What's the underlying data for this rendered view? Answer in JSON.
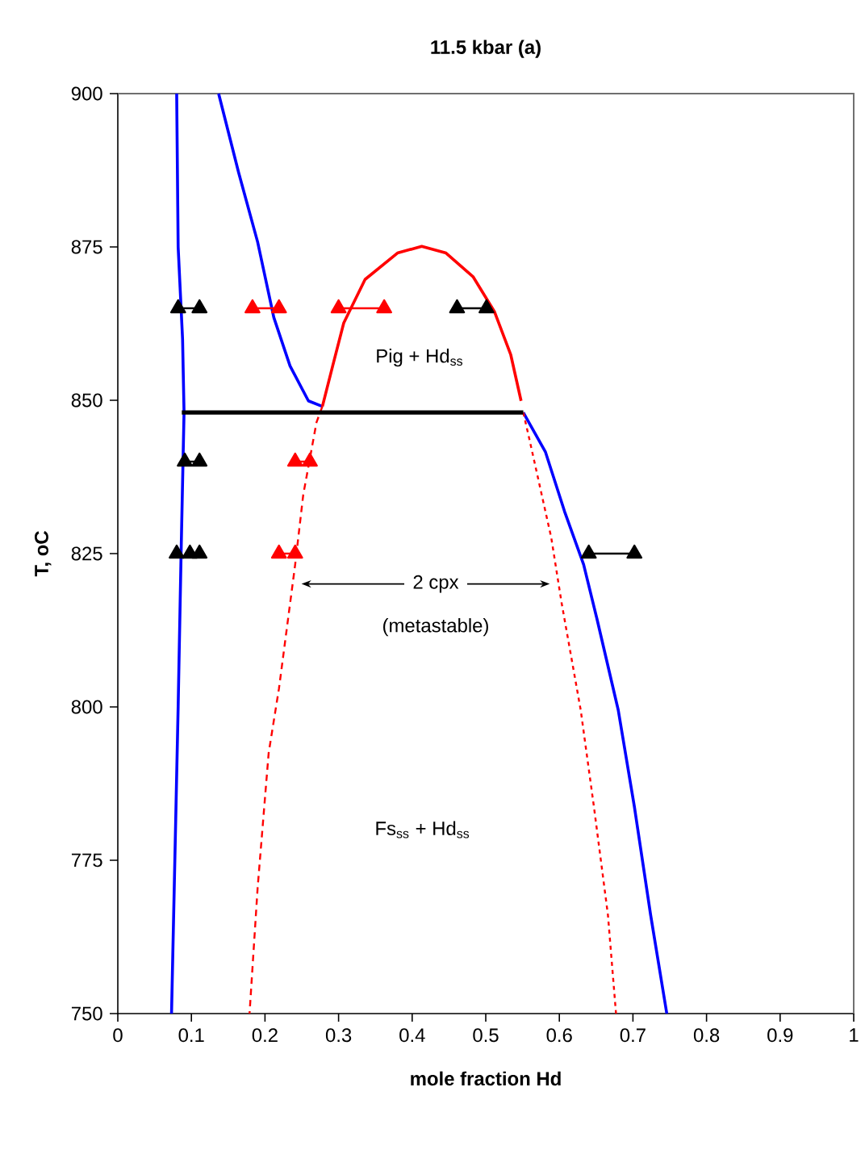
{
  "chart_data": {
    "type": "line",
    "title": "11.5 kbar (a)",
    "xlabel": "mole fraction Hd",
    "ylabel": "T, oC",
    "xlim": [
      0,
      1
    ],
    "ylim": [
      750,
      900
    ],
    "xticks": [
      0,
      0.1,
      0.2,
      0.3,
      0.4,
      0.5,
      0.6,
      0.7,
      0.8,
      0.9,
      1
    ],
    "yticks": [
      750,
      775,
      800,
      825,
      850,
      875,
      900
    ],
    "grid": false,
    "legend": false,
    "series": [
      {
        "color": "#0000ff",
        "marker": "none",
        "line_style": "solid",
        "x": [
          0.08,
          0.082,
          0.088,
          0.09,
          0.086,
          0.082,
          0.073
        ],
        "values": [
          900,
          875,
          860,
          848,
          825,
          800,
          750
        ]
      },
      {
        "color": "#0000ff",
        "marker": "none",
        "line_style": "solid",
        "x": [
          0.137,
          0.164,
          0.19,
          0.212,
          0.234,
          0.259,
          0.278
        ],
        "values": [
          900,
          887.2,
          875.8,
          863.5,
          855.6,
          849.9,
          849
        ]
      },
      {
        "color": "#ff0000",
        "marker": "none",
        "line_style": "solid",
        "x": [
          0.278,
          0.292,
          0.307,
          0.336,
          0.38,
          0.413,
          0.446,
          0.483,
          0.512,
          0.534,
          0.548
        ],
        "values": [
          849,
          855.6,
          862.6,
          869.7,
          874,
          875.1,
          874,
          870.1,
          864.4,
          857.4,
          849.9
        ]
      },
      {
        "color": "#0000ff",
        "marker": "none",
        "line_style": "solid",
        "x": [
          0.551,
          0.581,
          0.607,
          0.633,
          0.651,
          0.68,
          0.702,
          0.724,
          0.746
        ],
        "values": [
          848,
          841.6,
          831.9,
          823.2,
          814.4,
          799.5,
          783.7,
          766.1,
          750
        ]
      },
      {
        "color": "#ff0000",
        "marker": "none",
        "line_style": "dashed",
        "x": [
          0.278,
          0.27,
          0.252,
          0.241,
          0.219,
          0.205,
          0.19,
          0.179
        ],
        "values": [
          849,
          846.4,
          834.6,
          823.2,
          803,
          792.5,
          770.5,
          750
        ]
      },
      {
        "color": "#ff0000",
        "marker": "none",
        "line_style": "dotted",
        "x": [
          0.551,
          0.559,
          0.589,
          0.603,
          0.629,
          0.647,
          0.666,
          0.677
        ],
        "values": [
          848,
          843.8,
          827.6,
          817,
          799.5,
          783.7,
          766.1,
          750
        ]
      },
      {
        "color": "#000000",
        "marker": "none",
        "line_style": "solid",
        "x": [
          0.087,
          0.551
        ],
        "values": [
          848,
          848
        ]
      },
      {
        "color": "#000000",
        "marker": "triangle",
        "line_style": "solid",
        "x": [
          0.082,
          0.111
        ],
        "values": [
          865,
          865
        ]
      },
      {
        "color": "#ff0000",
        "marker": "triangle",
        "line_style": "solid",
        "x": [
          0.183,
          0.219
        ],
        "values": [
          865,
          865
        ]
      },
      {
        "color": "#ff0000",
        "marker": "triangle",
        "line_style": "solid",
        "x": [
          0.3,
          0.362
        ],
        "values": [
          865,
          865
        ]
      },
      {
        "color": "#000000",
        "marker": "triangle",
        "line_style": "solid",
        "x": [
          0.461,
          0.501
        ],
        "values": [
          865,
          865
        ]
      },
      {
        "color": "#000000",
        "marker": "triangle",
        "line_style": "solid",
        "x": [
          0.091,
          0.111
        ],
        "values": [
          840,
          840
        ]
      },
      {
        "color": "#ff0000",
        "marker": "triangle",
        "line_style": "solid",
        "x": [
          0.241,
          0.261
        ],
        "values": [
          840,
          840
        ]
      },
      {
        "type": "scatter",
        "color": "#000000",
        "marker": "triangle",
        "x": [
          0.08,
          0.098,
          0.111
        ],
        "values": [
          825,
          825,
          825
        ]
      },
      {
        "color": "#ff0000",
        "marker": "triangle",
        "line_style": "solid",
        "x": [
          0.219,
          0.241
        ],
        "values": [
          825,
          825
        ]
      },
      {
        "color": "#000000",
        "marker": "triangle",
        "line_style": "solid",
        "x": [
          0.64,
          0.702
        ],
        "values": [
          825,
          825
        ]
      }
    ],
    "annotations": [
      "Pig + Hd$_{ss}$",
      "2 cpx",
      "(metastable)",
      "Fs$_{ss}$ + Hd$_{ss}$"
    ]
  }
}
